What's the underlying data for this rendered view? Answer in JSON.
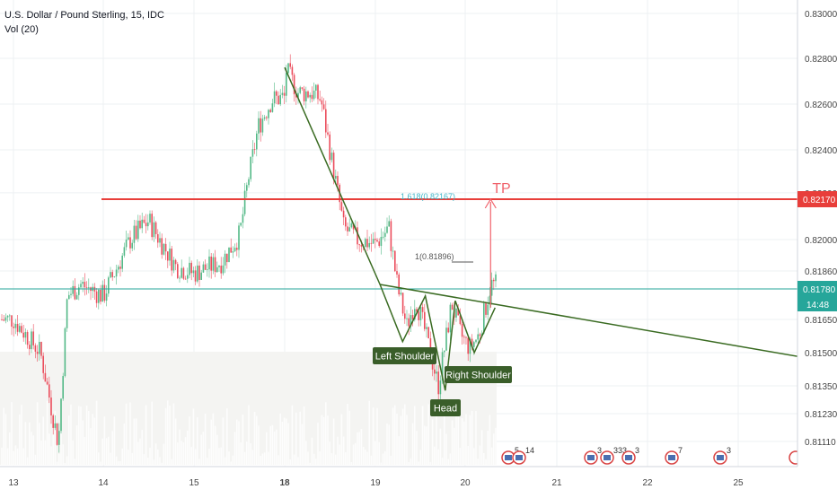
{
  "header": {
    "title": "U.S. Dollar / Pound Sterling, 15, IDC",
    "volume_label": "Vol (20)"
  },
  "price_axis": {
    "ticks": [
      "0.83000",
      "0.82800",
      "0.82600",
      "0.82400",
      "0.82200",
      "0.82000",
      "0.81860",
      "0.81650",
      "0.81500",
      "0.81350",
      "0.81230",
      "0.81110"
    ]
  },
  "time_axis": {
    "ticks": [
      "13",
      "14",
      "15",
      "18",
      "19",
      "20",
      "21",
      "22",
      "25"
    ]
  },
  "price_labels": {
    "resistance": "0.82170",
    "current": "0.81780",
    "countdown": "14:48"
  },
  "annotations": {
    "fib_1618": "1.618(0.82167)",
    "fib_1": "1(0.81896)",
    "target": "TP",
    "left_shoulder": "Left Shoulder",
    "head": "Head",
    "right_shoulder": "Right Shoulder"
  },
  "events": [
    {
      "label": "5"
    },
    {
      "label": "14"
    },
    {
      "label": "3"
    },
    {
      "label": "333"
    },
    {
      "label": "3"
    },
    {
      "label": "7"
    },
    {
      "label": "3"
    }
  ],
  "colors": {
    "candle_up": "#53b987",
    "candle_down": "#eb4d5c",
    "resistance_line": "#e83e3a",
    "current_line": "#26a69a",
    "pattern_line": "#3a6b22",
    "label_bg": "#3a5e2a",
    "tp_color": "#f0626b",
    "fib_color": "#3fb6c9"
  },
  "chart_data": {
    "type": "candlestick",
    "title": "U.S. Dollar / Pound Sterling, 15, IDC",
    "x_range": [
      "13",
      "25"
    ],
    "y_range": [
      0.81,
      0.8306
    ],
    "path_points": [
      {
        "x": 13.0,
        "y": 0.8165
      },
      {
        "x": 13.3,
        "y": 0.815
      },
      {
        "x": 13.5,
        "y": 0.811
      },
      {
        "x": 13.6,
        "y": 0.8175
      },
      {
        "x": 13.75,
        "y": 0.818
      },
      {
        "x": 14.0,
        "y": 0.8175
      },
      {
        "x": 14.3,
        "y": 0.82
      },
      {
        "x": 14.5,
        "y": 0.8208
      },
      {
        "x": 14.8,
        "y": 0.8188
      },
      {
        "x": 15.0,
        "y": 0.8185
      },
      {
        "x": 15.3,
        "y": 0.819
      },
      {
        "x": 15.5,
        "y": 0.8202
      },
      {
        "x": 15.6,
        "y": 0.8228
      },
      {
        "x": 15.7,
        "y": 0.825
      },
      {
        "x": 15.85,
        "y": 0.8262
      },
      {
        "x": 18.0,
        "y": 0.8276
      },
      {
        "x": 18.15,
        "y": 0.8265
      },
      {
        "x": 18.3,
        "y": 0.8265
      },
      {
        "x": 18.4,
        "y": 0.8262
      },
      {
        "x": 18.55,
        "y": 0.8228
      },
      {
        "x": 18.65,
        "y": 0.8205
      },
      {
        "x": 18.8,
        "y": 0.82
      },
      {
        "x": 19.0,
        "y": 0.8198
      },
      {
        "x": 19.15,
        "y": 0.8205
      },
      {
        "x": 19.25,
        "y": 0.8178
      },
      {
        "x": 19.35,
        "y": 0.8162
      },
      {
        "x": 19.45,
        "y": 0.8174
      },
      {
        "x": 19.55,
        "y": 0.816
      },
      {
        "x": 19.7,
        "y": 0.8135
      },
      {
        "x": 19.85,
        "y": 0.8172
      },
      {
        "x": 19.95,
        "y": 0.8158
      },
      {
        "x": 20.05,
        "y": 0.8152
      },
      {
        "x": 20.15,
        "y": 0.8158
      },
      {
        "x": 20.28,
        "y": 0.818
      }
    ],
    "horizontal_lines": [
      {
        "label": "0.82170",
        "y": 0.8217
      },
      {
        "label": "0.81780",
        "y": 0.8178
      }
    ],
    "pattern_points": [
      {
        "x": 18.0,
        "y": 0.8276
      },
      {
        "x": 19.05,
        "y": 0.818
      },
      {
        "x": 19.3,
        "y": 0.8155
      },
      {
        "x": 19.55,
        "y": 0.8175
      },
      {
        "x": 19.77,
        "y": 0.8133
      },
      {
        "x": 19.88,
        "y": 0.8173
      },
      {
        "x": 20.1,
        "y": 0.815
      },
      {
        "x": 20.33,
        "y": 0.817
      }
    ],
    "neckline": [
      {
        "x": 19.05,
        "y": 0.818
      },
      {
        "x": 23.7,
        "y": 0.8148
      }
    ],
    "target_arrow": [
      {
        "x": 20.28,
        "y": 0.817
      },
      {
        "x": 20.28,
        "y": 0.8217
      }
    ]
  }
}
